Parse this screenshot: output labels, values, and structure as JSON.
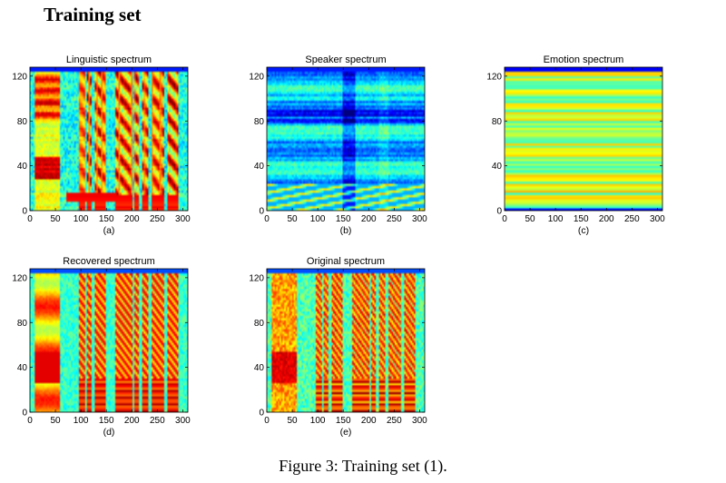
{
  "page": {
    "section_title": "Training set",
    "caption": "Figure 3: Training set (1)."
  },
  "colors": {
    "axis": "#000000",
    "background": "#ffffff",
    "colormap": "jet"
  },
  "chart_data": [
    {
      "type": "heatmap",
      "id": "a",
      "title": "Linguistic spectrum",
      "letter": "(a)",
      "xlabel": "",
      "ylabel": "",
      "x_range": [
        0,
        310
      ],
      "y_range": [
        0,
        128
      ],
      "x_ticks": [
        0,
        50,
        100,
        150,
        200,
        250,
        300
      ],
      "y_ticks": [
        0,
        40,
        80,
        120
      ],
      "pattern": "linguistic"
    },
    {
      "type": "heatmap",
      "id": "b",
      "title": "Speaker spectrum",
      "letter": "(b)",
      "xlabel": "",
      "ylabel": "",
      "x_range": [
        0,
        310
      ],
      "y_range": [
        0,
        128
      ],
      "x_ticks": [
        0,
        50,
        100,
        150,
        200,
        250,
        300
      ],
      "y_ticks": [
        0,
        40,
        80,
        120
      ],
      "pattern": "speaker"
    },
    {
      "type": "heatmap",
      "id": "c",
      "title": "Emotion spectrum",
      "letter": "(c)",
      "xlabel": "",
      "ylabel": "",
      "x_range": [
        0,
        310
      ],
      "y_range": [
        0,
        128
      ],
      "x_ticks": [
        0,
        50,
        100,
        150,
        200,
        250,
        300
      ],
      "y_ticks": [
        0,
        40,
        80,
        120
      ],
      "pattern": "emotion"
    },
    {
      "type": "heatmap",
      "id": "d",
      "title": "Recovered spectrum",
      "letter": "(d)",
      "xlabel": "",
      "ylabel": "",
      "x_range": [
        0,
        310
      ],
      "y_range": [
        0,
        128
      ],
      "x_ticks": [
        0,
        50,
        100,
        150,
        200,
        250,
        300
      ],
      "y_ticks": [
        0,
        40,
        80,
        120
      ],
      "pattern": "recovered"
    },
    {
      "type": "heatmap",
      "id": "e",
      "title": "Original spectrum",
      "letter": "(e)",
      "xlabel": "",
      "ylabel": "",
      "x_range": [
        0,
        310
      ],
      "y_range": [
        0,
        128
      ],
      "x_ticks": [
        0,
        50,
        100,
        150,
        200,
        250,
        300
      ],
      "y_ticks": [
        0,
        40,
        80,
        120
      ],
      "pattern": "original"
    }
  ]
}
